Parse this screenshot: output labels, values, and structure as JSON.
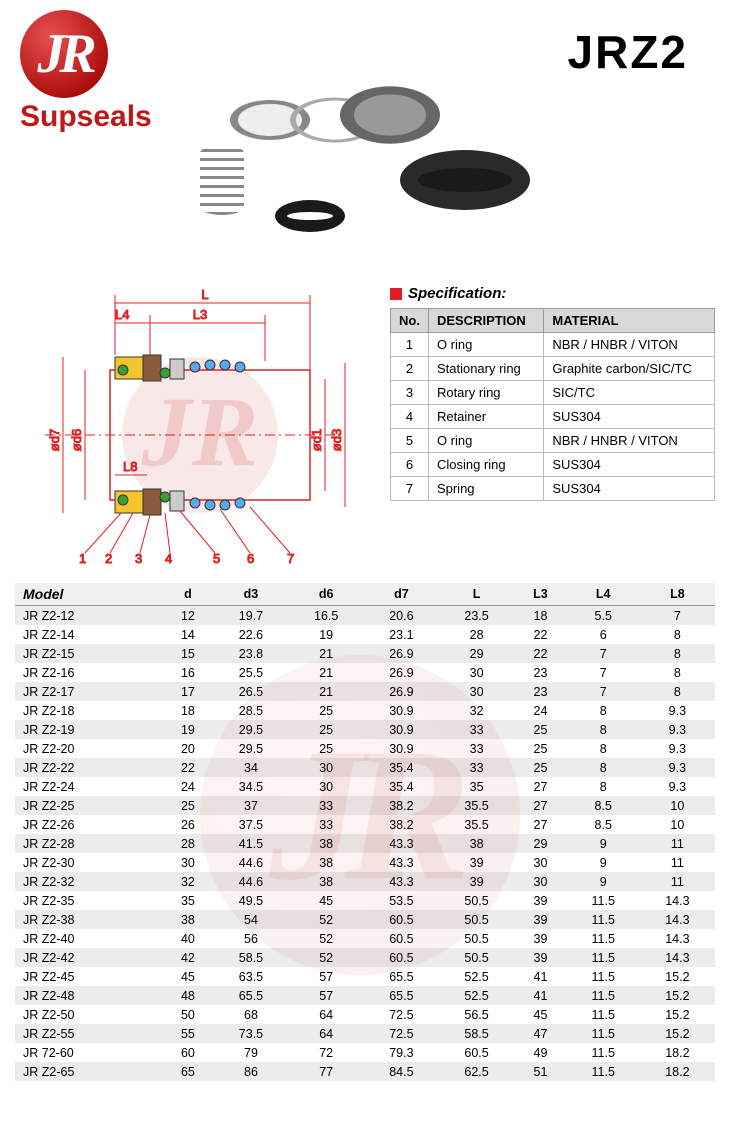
{
  "header": {
    "logo_letters": "JR",
    "logo_text": "Supseals",
    "product_code": "JRZ2",
    "logo_color": "#b01010",
    "text_color": "#c01818"
  },
  "diagram": {
    "dim_labels": [
      "L",
      "L4",
      "L3",
      "L8",
      "ød7",
      "ød6",
      "ød1",
      "ød3"
    ],
    "callouts": [
      "1",
      "2",
      "3",
      "4",
      "5",
      "6",
      "7"
    ],
    "line_color": "#e02020",
    "part_colors": {
      "retainer": "#f5c530",
      "rotary": "#8b5a3c",
      "oring": "#3aa030",
      "spring_ball": "#5aa8e8"
    }
  },
  "spec": {
    "title": "Specification:",
    "columns": [
      "No.",
      "DESCRIPTION",
      "MATERIAL"
    ],
    "rows": [
      [
        "1",
        "O ring",
        "NBR / HNBR / VITON"
      ],
      [
        "2",
        "Stationary ring",
        "Graphite carbon/SIC/TC"
      ],
      [
        "3",
        "Rotary ring",
        "SIC/TC"
      ],
      [
        "4",
        "Retainer",
        "SUS304"
      ],
      [
        "5",
        "O ring",
        "NBR / HNBR / VITON"
      ],
      [
        "6",
        "Closing ring",
        "SUS304"
      ],
      [
        "7",
        "Spring",
        "SUS304"
      ]
    ]
  },
  "model_table": {
    "columns": [
      "Model",
      "d",
      "d3",
      "d6",
      "d7",
      "L",
      "L3",
      "L4",
      "L8"
    ],
    "rows": [
      [
        "JR Z2-12",
        "12",
        "19.7",
        "16.5",
        "20.6",
        "23.5",
        "18",
        "5.5",
        "7"
      ],
      [
        "JR Z2-14",
        "14",
        "22.6",
        "19",
        "23.1",
        "28",
        "22",
        "6",
        "8"
      ],
      [
        "JR Z2-15",
        "15",
        "23.8",
        "21",
        "26.9",
        "29",
        "22",
        "7",
        "8"
      ],
      [
        "JR Z2-16",
        "16",
        "25.5",
        "21",
        "26.9",
        "30",
        "23",
        "7",
        "8"
      ],
      [
        "JR Z2-17",
        "17",
        "26.5",
        "21",
        "26.9",
        "30",
        "23",
        "7",
        "8"
      ],
      [
        "JR Z2-18",
        "18",
        "28.5",
        "25",
        "30.9",
        "32",
        "24",
        "8",
        "9.3"
      ],
      [
        "JR Z2-19",
        "19",
        "29.5",
        "25",
        "30.9",
        "33",
        "25",
        "8",
        "9.3"
      ],
      [
        "JR Z2-20",
        "20",
        "29.5",
        "25",
        "30.9",
        "33",
        "25",
        "8",
        "9.3"
      ],
      [
        "JR Z2-22",
        "22",
        "34",
        "30",
        "35.4",
        "33",
        "25",
        "8",
        "9.3"
      ],
      [
        "JR Z2-24",
        "24",
        "34.5",
        "30",
        "35.4",
        "35",
        "27",
        "8",
        "9.3"
      ],
      [
        "JR Z2-25",
        "25",
        "37",
        "33",
        "38.2",
        "35.5",
        "27",
        "8.5",
        "10"
      ],
      [
        "JR Z2-26",
        "26",
        "37.5",
        "33",
        "38.2",
        "35.5",
        "27",
        "8.5",
        "10"
      ],
      [
        "JR Z2-28",
        "28",
        "41.5",
        "38",
        "43.3",
        "38",
        "29",
        "9",
        "11"
      ],
      [
        "JR Z2-30",
        "30",
        "44.6",
        "38",
        "43.3",
        "39",
        "30",
        "9",
        "11"
      ],
      [
        "JR Z2-32",
        "32",
        "44.6",
        "38",
        "43.3",
        "39",
        "30",
        "9",
        "11"
      ],
      [
        "JR Z2-35",
        "35",
        "49.5",
        "45",
        "53.5",
        "50.5",
        "39",
        "11.5",
        "14.3"
      ],
      [
        "JR Z2-38",
        "38",
        "54",
        "52",
        "60.5",
        "50.5",
        "39",
        "11.5",
        "14.3"
      ],
      [
        "JR Z2-40",
        "40",
        "56",
        "52",
        "60.5",
        "50.5",
        "39",
        "11.5",
        "14.3"
      ],
      [
        "JR Z2-42",
        "42",
        "58.5",
        "52",
        "60.5",
        "50.5",
        "39",
        "11.5",
        "14.3"
      ],
      [
        "JR Z2-45",
        "45",
        "63.5",
        "57",
        "65.5",
        "52.5",
        "41",
        "11.5",
        "15.2"
      ],
      [
        "JR Z2-48",
        "48",
        "65.5",
        "57",
        "65.5",
        "52.5",
        "41",
        "11.5",
        "15.2"
      ],
      [
        "JR Z2-50",
        "50",
        "68",
        "64",
        "72.5",
        "56.5",
        "45",
        "11.5",
        "15.2"
      ],
      [
        "JR Z2-55",
        "55",
        "73.5",
        "64",
        "72.5",
        "58.5",
        "47",
        "11.5",
        "15.2"
      ],
      [
        "JR 72-60",
        "60",
        "79",
        "72",
        "79.3",
        "60.5",
        "49",
        "11.5",
        "18.2"
      ],
      [
        "JR Z2-65",
        "65",
        "86",
        "77",
        "84.5",
        "62.5",
        "51",
        "11.5",
        "18.2"
      ]
    ]
  }
}
